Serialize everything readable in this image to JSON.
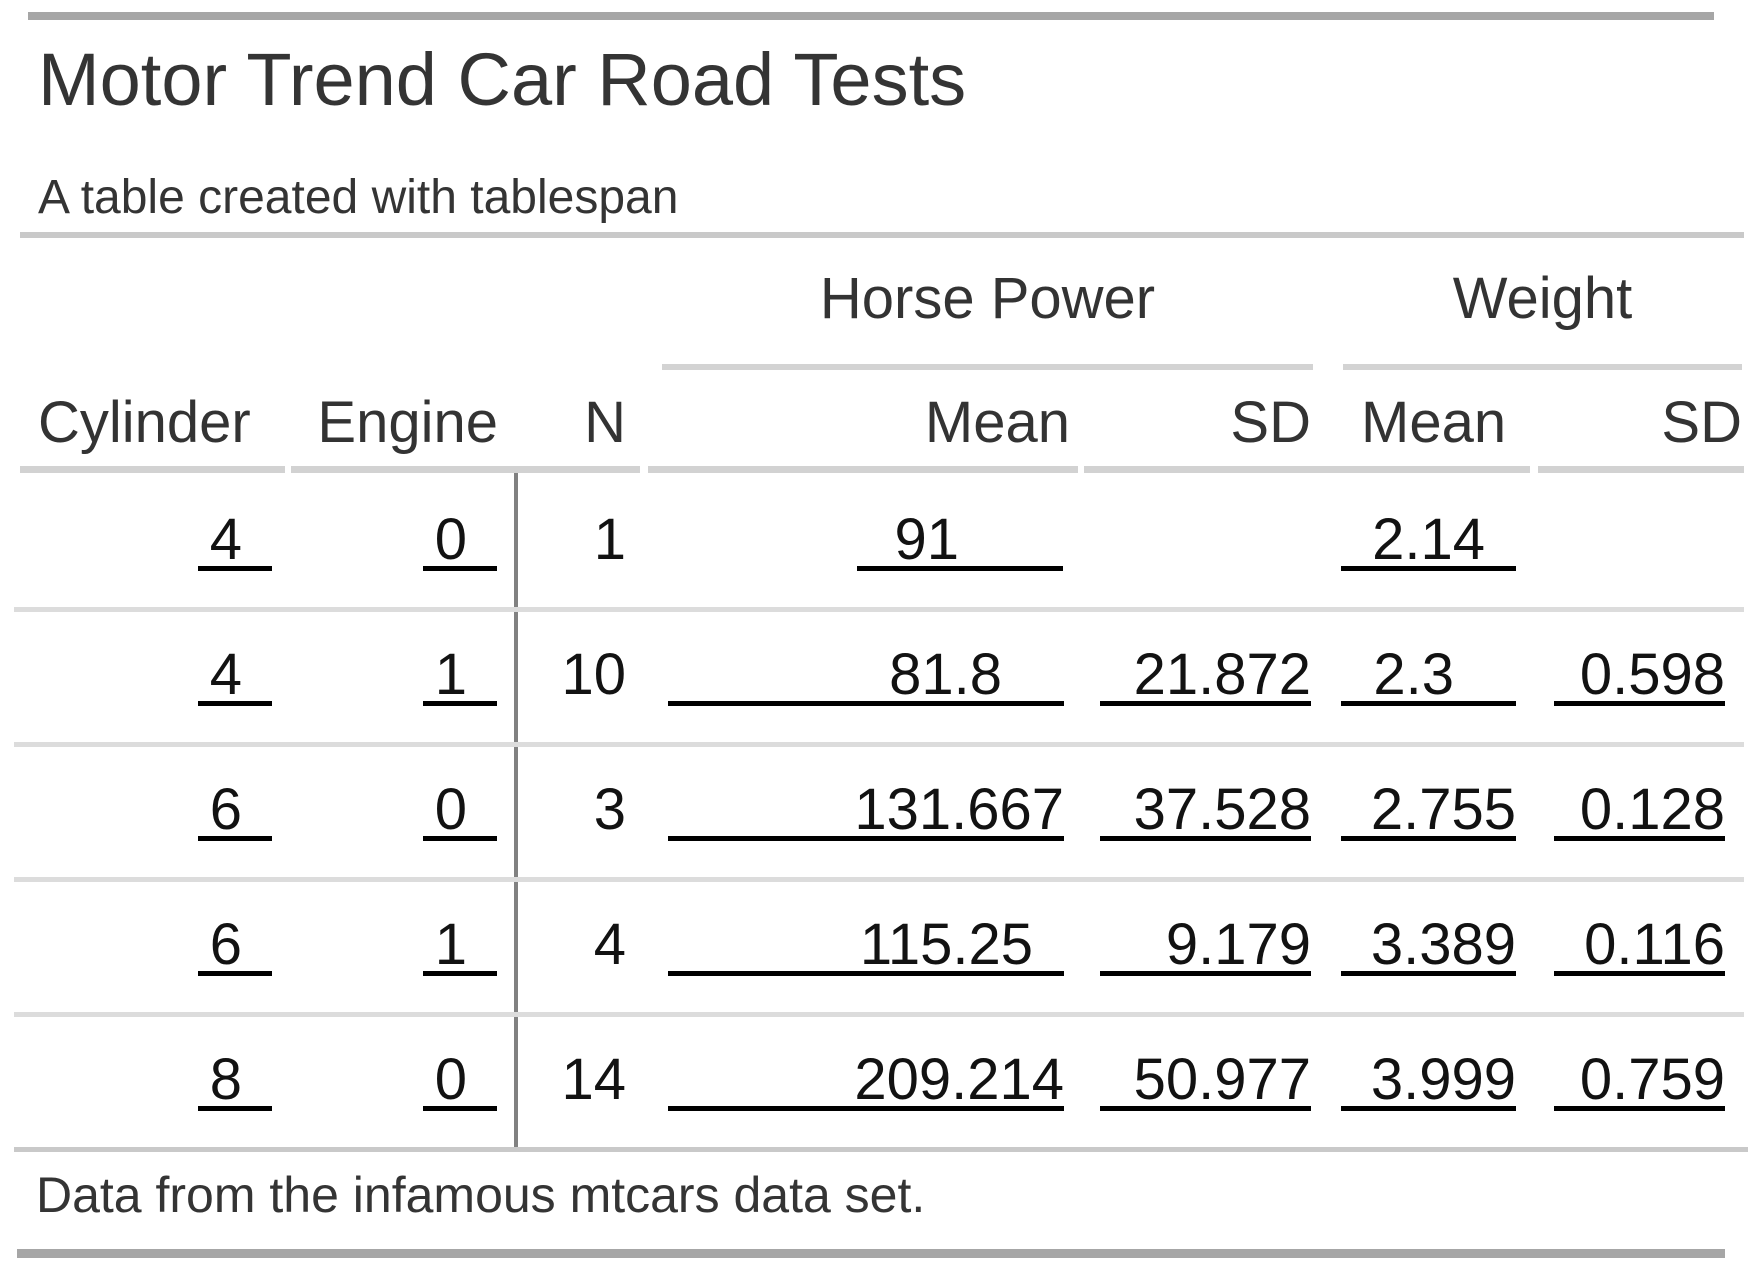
{
  "header": {
    "title": "Motor Trend Car Road Tests",
    "subtitle": "A table created with tablespan"
  },
  "table": {
    "spanners": [
      {
        "label": "Horse Power",
        "columns": [
          "Mean",
          "SD"
        ]
      },
      {
        "label": "Weight",
        "columns": [
          "Mean",
          "SD"
        ]
      }
    ],
    "columns": [
      "Cylinder",
      "Engine",
      "N",
      "Mean",
      "SD",
      "Mean",
      "SD"
    ],
    "rows": [
      {
        "cylinder": "4",
        "engine": "0",
        "n": "1",
        "hp_mean": "91",
        "hp_sd": "",
        "wt_mean": "2.14",
        "wt_sd": ""
      },
      {
        "cylinder": "4",
        "engine": "1",
        "n": "10",
        "hp_mean": "81.8",
        "hp_sd": "21.872",
        "wt_mean": "2.3",
        "wt_sd": "0.598"
      },
      {
        "cylinder": "6",
        "engine": "0",
        "n": "3",
        "hp_mean": "131.667",
        "hp_sd": "37.528",
        "wt_mean": "2.755",
        "wt_sd": "0.128"
      },
      {
        "cylinder": "6",
        "engine": "1",
        "n": "4",
        "hp_mean": "115.25",
        "hp_sd": "9.179",
        "wt_mean": "3.389",
        "wt_sd": "0.116"
      },
      {
        "cylinder": "8",
        "engine": "0",
        "n": "14",
        "hp_mean": "209.214",
        "hp_sd": "50.977",
        "wt_mean": "3.999",
        "wt_sd": "0.759"
      }
    ],
    "footnote": "Data from the infamous mtcars data set."
  },
  "colors": {
    "text_heading": "#343434",
    "text_data": "#121212",
    "frame_bar": "#a6a6a6",
    "rule_strong": "#c9c9c9",
    "rule_light": "#d3d3d3",
    "row_separator": "#dcdcdc",
    "vertical_divider": "#818181",
    "cell_underline": "#000000",
    "background": "#ffffff"
  }
}
